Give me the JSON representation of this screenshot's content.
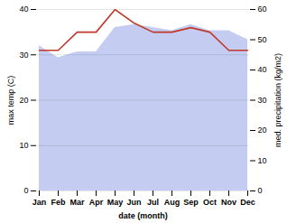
{
  "chart_data": {
    "type": "line",
    "xlabel": "date (month)",
    "ylabel": "max temp (C)",
    "y2label": "med. precipitation (kg/m2)",
    "categories": [
      "Jan",
      "Feb",
      "Mar",
      "Apr",
      "May",
      "Jun",
      "Jul",
      "Aug",
      "Sep",
      "Oct",
      "Nov",
      "Dec"
    ],
    "series": [
      {
        "type": "area",
        "axis": "y2",
        "color": "#b0bcec",
        "values": [
          48,
          44,
          46,
          46,
          54,
          55,
          54,
          53,
          55,
          53,
          53,
          50
        ]
      },
      {
        "type": "line",
        "axis": "y",
        "color": "#c0392b",
        "values": [
          31,
          31,
          35,
          35,
          40,
          37,
          35,
          35,
          36,
          35,
          31,
          31
        ]
      }
    ],
    "ylim": [
      0,
      40
    ],
    "yticks": [
      0,
      10,
      20,
      30,
      40
    ],
    "y2lim": [
      0,
      60
    ],
    "y2ticks": [
      0,
      10,
      20,
      30,
      40,
      50,
      60
    ],
    "grid": true
  }
}
